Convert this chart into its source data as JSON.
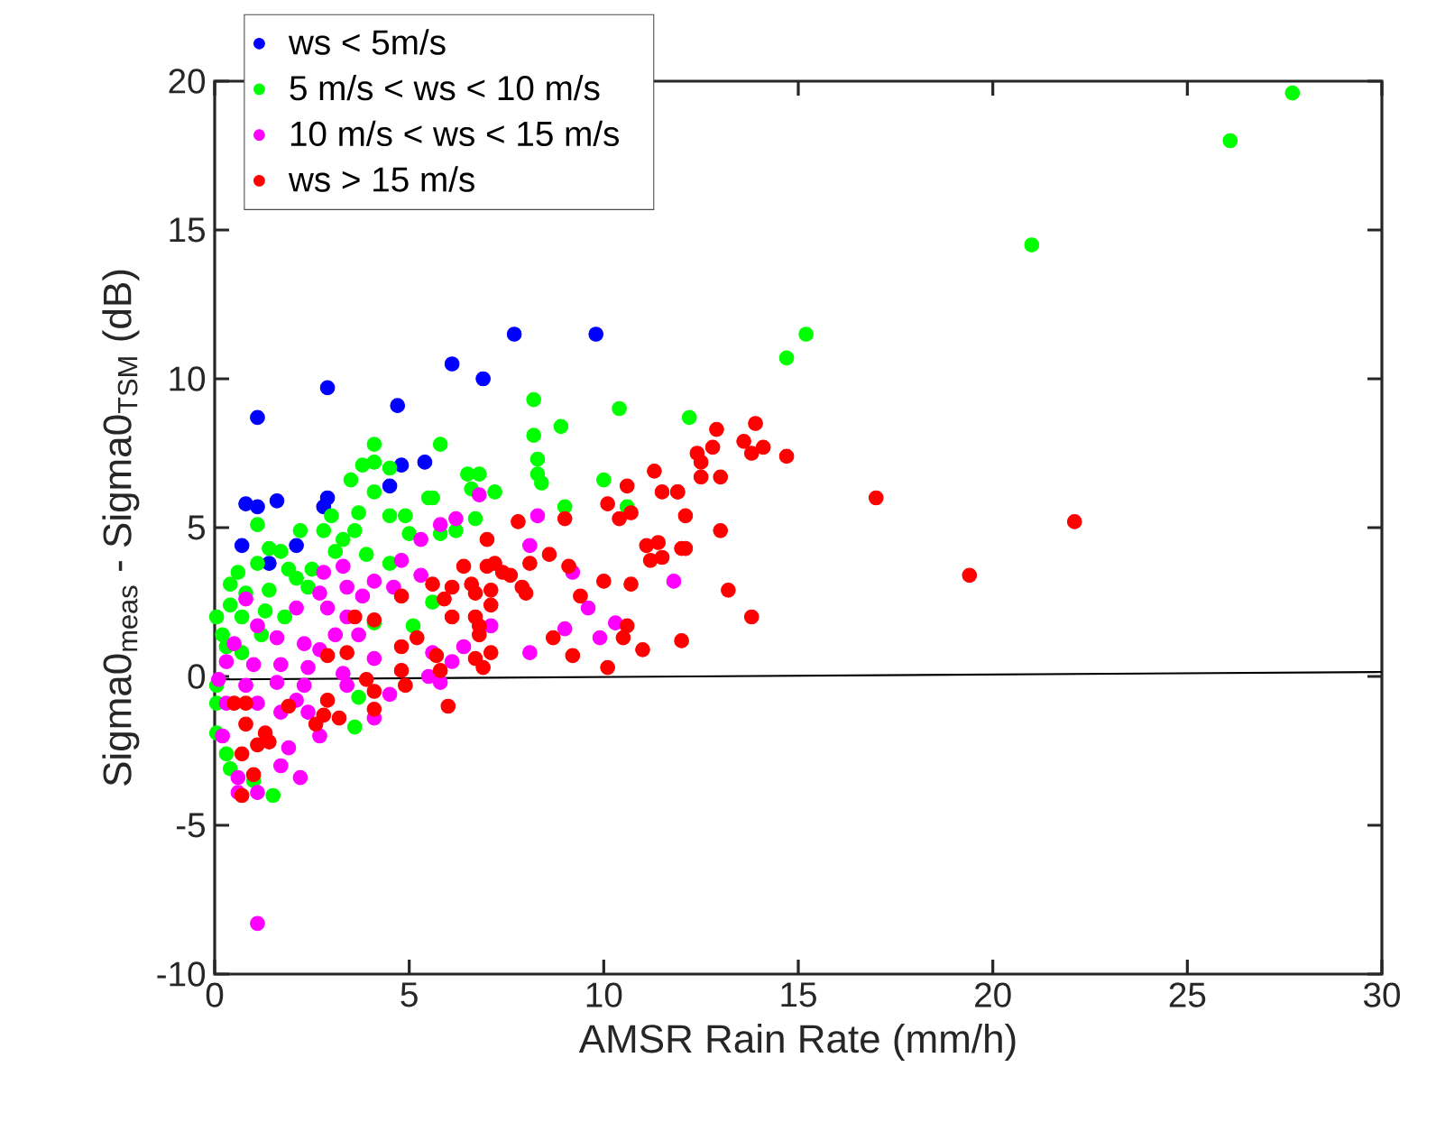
{
  "chart_data": {
    "type": "scatter",
    "xlabel": "AMSR Rain Rate (mm/h)",
    "ylabel": "Sigma0$_{meas}$ - Sigma0$_{TSM}$ (dB)",
    "xlim": [
      0,
      30
    ],
    "ylim": [
      -10,
      20
    ],
    "xticks": [
      0,
      5,
      10,
      15,
      20,
      25,
      30
    ],
    "yticks": [
      -10,
      -5,
      0,
      5,
      10,
      15,
      20
    ],
    "grid": false,
    "legend": "top left",
    "marker": "circle",
    "series": [
      {
        "name": "ws < 5m/s",
        "color": "#0000ff",
        "x": [
          7.7,
          9.8,
          6.1,
          6.9,
          5.4,
          2.9,
          1.1,
          4.7,
          4.8,
          4.5,
          0.8,
          1.1,
          1.6,
          2.9,
          2.8,
          0.7,
          2.1,
          1.4
        ],
        "values": [
          11.5,
          11.5,
          10.5,
          10.0,
          7.2,
          9.7,
          8.7,
          9.1,
          7.1,
          6.4,
          5.8,
          5.7,
          5.9,
          6.0,
          5.7,
          4.4,
          4.4,
          3.8
        ]
      },
      {
        "name": "5 m/s < ws < 10 m/s",
        "color": "#00ff00",
        "x": [
          27.7,
          26.1,
          21.0,
          15.2,
          14.7,
          12.2,
          8.2,
          10.4,
          8.2,
          8.9,
          5.8,
          8.3,
          8.3,
          8.4,
          6.5,
          6.8,
          6.6,
          7.2,
          5.6,
          10.0,
          9.0,
          10.6,
          6.7,
          6.2,
          5.8,
          5.6,
          4.1,
          3.8,
          4.1,
          4.5,
          3.5,
          4.1,
          5.5,
          4.5,
          4.9,
          1.1,
          3.0,
          3.7,
          2.2,
          2.8,
          3.6,
          3.3,
          5.0,
          1.4,
          1.7,
          3.1,
          3.9,
          4.5,
          1.1,
          0.6,
          1.9,
          2.5,
          0.4,
          0.8,
          1.4,
          2.1,
          2.4,
          0.05,
          0.4,
          0.7,
          1.3,
          1.8,
          0.2,
          1.2,
          4.1,
          5.1,
          0.3,
          0.7,
          0.05,
          0.05,
          0.05,
          0.3,
          0.4,
          1.0,
          1.5,
          3.6,
          3.7
        ],
        "values": [
          19.6,
          18.0,
          14.5,
          11.5,
          10.7,
          8.7,
          9.3,
          9.0,
          8.1,
          8.4,
          7.8,
          7.3,
          6.8,
          6.5,
          6.8,
          6.8,
          6.3,
          6.2,
          6.0,
          6.6,
          5.7,
          5.7,
          5.3,
          4.9,
          4.8,
          2.5,
          7.8,
          7.1,
          7.2,
          7.0,
          6.6,
          6.2,
          6.0,
          5.4,
          5.4,
          5.1,
          5.4,
          5.5,
          4.9,
          4.9,
          4.9,
          4.6,
          4.8,
          4.3,
          4.2,
          4.2,
          4.1,
          3.8,
          3.8,
          3.5,
          3.6,
          3.6,
          3.1,
          2.8,
          2.9,
          3.3,
          3.0,
          2.0,
          2.4,
          2.0,
          2.2,
          2.0,
          1.4,
          1.4,
          1.8,
          1.7,
          1.0,
          0.8,
          -0.3,
          -0.9,
          -1.9,
          -2.6,
          -3.1,
          -3.5,
          -4.0,
          -1.7,
          -0.7
        ]
      },
      {
        "name": "10 m/s < ws < 15 m/s",
        "color": "#ff00ff",
        "x": [
          11.8,
          6.8,
          8.3,
          5.8,
          6.2,
          5.3,
          8.1,
          5.3,
          9.2,
          9.6,
          9.0,
          10.3,
          9.9,
          8.1,
          6.4,
          7.1,
          5.6,
          6.1,
          5.5,
          5.8,
          4.8,
          3.3,
          2.8,
          4.1,
          0.8,
          3.4,
          4.6,
          2.7,
          3.8,
          2.1,
          2.9,
          3.4,
          1.1,
          1.6,
          2.3,
          3.1,
          3.7,
          0.5,
          2.7,
          4.1,
          0.3,
          1.0,
          1.7,
          2.4,
          3.3,
          0.1,
          0.8,
          1.6,
          2.3,
          3.4,
          4.5,
          0.3,
          1.1,
          2.1,
          2.7,
          4.1,
          0.2,
          1.7,
          2.4,
          1.9,
          1.7,
          2.2,
          0.6,
          0.6,
          1.1,
          1.1
        ],
        "values": [
          3.2,
          6.1,
          5.4,
          5.1,
          5.3,
          4.6,
          4.4,
          3.4,
          3.5,
          2.3,
          1.6,
          1.8,
          1.3,
          0.8,
          1.0,
          1.7,
          0.8,
          0.5,
          0.0,
          -0.2,
          3.9,
          3.7,
          3.5,
          3.2,
          2.6,
          3.0,
          3.0,
          2.8,
          2.7,
          2.3,
          2.3,
          2.0,
          1.7,
          1.3,
          1.1,
          1.4,
          1.4,
          1.1,
          0.9,
          0.6,
          0.5,
          0.4,
          0.4,
          0.3,
          0.1,
          -0.1,
          -0.3,
          -0.2,
          -0.3,
          -0.3,
          -0.6,
          -0.9,
          -0.9,
          -0.8,
          -2.0,
          -1.4,
          -2.0,
          -1.2,
          -1.2,
          -2.4,
          -3.0,
          -3.4,
          -3.4,
          -3.9,
          -3.9,
          -8.3
        ]
      },
      {
        "name": "ws > 15 m/s",
        "color": "#ff0000",
        "x": [
          22.1,
          12.9,
          13.9,
          13.6,
          14.1,
          13.8,
          12.8,
          12.4,
          12.5,
          14.7,
          12.5,
          13.0,
          11.9,
          12.1,
          13.0,
          12.1,
          17.0,
          19.4,
          13.2,
          13.8,
          12.0,
          11.3,
          10.6,
          11.5,
          11.9,
          10.1,
          10.4,
          10.7,
          7.8,
          9.0,
          7.0,
          8.6,
          8.1,
          9.1,
          11.1,
          11.4,
          11.2,
          11.5,
          12.0,
          6.4,
          7.0,
          7.2,
          7.4,
          7.6,
          7.9,
          8.0,
          10.0,
          10.7,
          9.4,
          5.6,
          6.1,
          6.6,
          6.7,
          7.1,
          7.1,
          5.9,
          6.1,
          6.7,
          6.8,
          6.8,
          5.2,
          8.7,
          10.6,
          10.5,
          11.0,
          9.2,
          10.1,
          5.7,
          6.7,
          7.1,
          6.9,
          5.8,
          6.0,
          4.8,
          3.6,
          4.1,
          3.4,
          2.9,
          4.8,
          4.8,
          4.9,
          3.9,
          4.1,
          2.9,
          1.9,
          0.5,
          0.8,
          4.1,
          2.8,
          3.2,
          2.6,
          0.8,
          1.3,
          1.1,
          1.4,
          0.7,
          1.0,
          0.7
        ],
        "values": [
          5.2,
          8.3,
          8.5,
          7.9,
          7.7,
          7.5,
          7.7,
          7.5,
          7.2,
          7.4,
          6.7,
          6.7,
          6.2,
          5.4,
          4.9,
          4.3,
          6.0,
          3.4,
          2.9,
          2.0,
          1.2,
          6.9,
          6.4,
          6.2,
          6.2,
          5.8,
          5.3,
          5.5,
          5.2,
          5.3,
          4.6,
          4.1,
          3.8,
          3.7,
          4.4,
          4.5,
          3.9,
          4.0,
          4.3,
          3.7,
          3.7,
          3.8,
          3.5,
          3.4,
          3.0,
          2.8,
          3.2,
          3.1,
          2.7,
          3.1,
          3.0,
          3.1,
          2.8,
          2.9,
          2.4,
          2.6,
          2.0,
          2.0,
          1.7,
          1.4,
          1.3,
          1.3,
          1.7,
          1.3,
          0.9,
          0.7,
          0.3,
          0.7,
          0.6,
          0.8,
          0.3,
          0.2,
          -1.0,
          2.7,
          2.0,
          1.9,
          0.8,
          0.7,
          1.0,
          0.2,
          -0.3,
          -0.1,
          -0.5,
          -0.8,
          -1.0,
          -0.9,
          -0.9,
          -1.1,
          -1.3,
          -1.4,
          -1.6,
          -1.6,
          -1.9,
          -2.3,
          -2.2,
          -2.6,
          -3.3,
          -4.0
        ]
      },
      {
        "type": "line",
        "marker": "none",
        "color": "#000000",
        "x": [
          0,
          30
        ],
        "values": [
          -0.1,
          0.15
        ]
      }
    ]
  }
}
